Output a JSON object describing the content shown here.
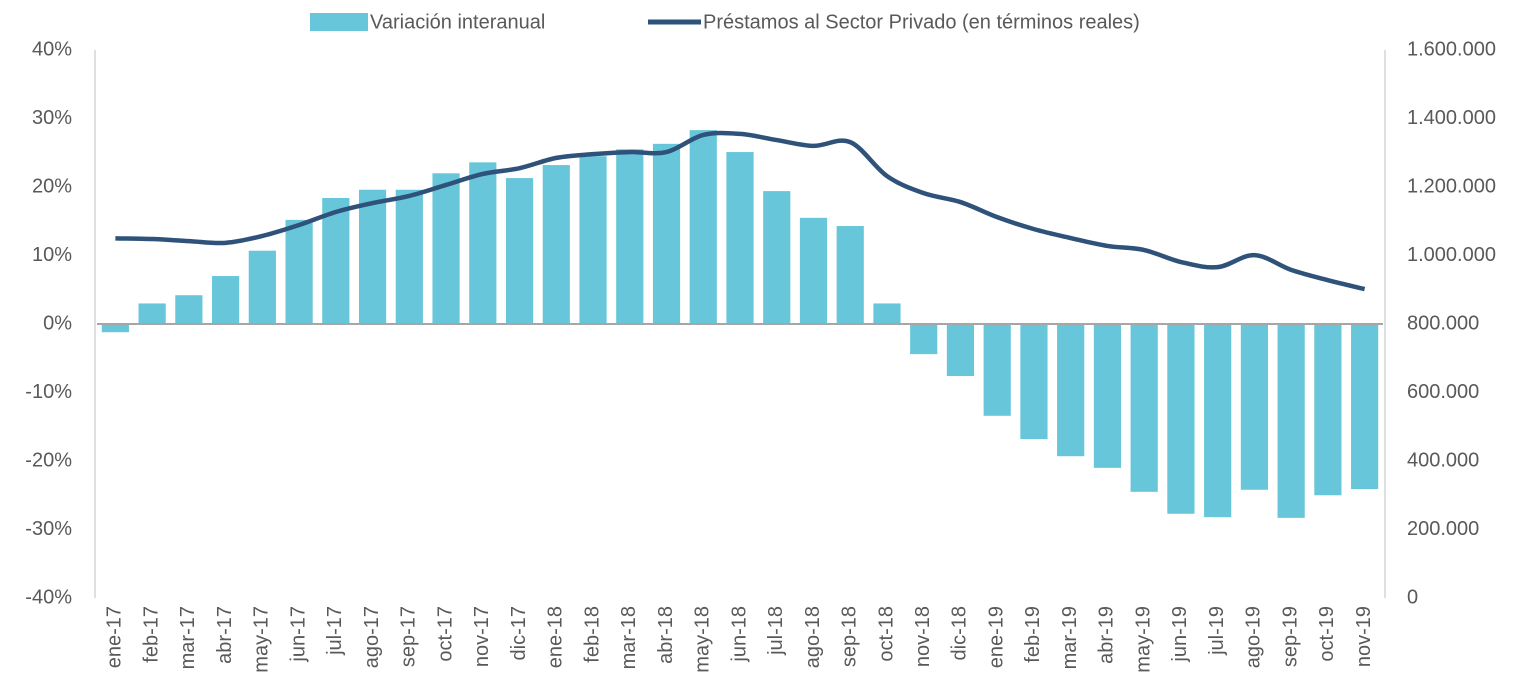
{
  "chart_data": {
    "type": "bar-line",
    "categories": [
      "ene-17",
      "feb-17",
      "mar-17",
      "abr-17",
      "may-17",
      "jun-17",
      "jul-17",
      "ago-17",
      "sep-17",
      "oct-17",
      "nov-17",
      "dic-17",
      "ene-18",
      "feb-18",
      "mar-18",
      "abr-18",
      "may-18",
      "jun-18",
      "jul-18",
      "ago-18",
      "sep-18",
      "oct-18",
      "nov-18",
      "dic-18",
      "ene-19",
      "feb-19",
      "mar-19",
      "abr-19",
      "may-19",
      "jun-19",
      "jul-19",
      "ago-19",
      "sep-19",
      "oct-19",
      "nov-19"
    ],
    "series": [
      {
        "name": "Variación interanual",
        "type": "bar",
        "color": "#67c6da",
        "axis": "y",
        "values": [
          -1.2,
          3.0,
          4.2,
          7.0,
          10.7,
          15.2,
          18.4,
          19.6,
          19.6,
          22.0,
          23.6,
          21.3,
          23.2,
          24.5,
          25.5,
          26.3,
          28.3,
          25.1,
          19.4,
          15.5,
          14.3,
          3.0,
          -4.4,
          -7.6,
          -13.4,
          -16.8,
          -19.3,
          -21.0,
          -24.5,
          -27.7,
          -28.2,
          -24.2,
          -28.3,
          -25.0,
          -24.1
        ]
      },
      {
        "name": "Préstamos al Sector Privado (en términos reales)",
        "type": "line",
        "color": "#2e5279",
        "axis": "y2",
        "values": [
          1050000,
          1048000,
          1042000,
          1037000,
          1057000,
          1089000,
          1127000,
          1153000,
          1174000,
          1206000,
          1238000,
          1255000,
          1285000,
          1296000,
          1302000,
          1302000,
          1352000,
          1355000,
          1337000,
          1320000,
          1331000,
          1232000,
          1182000,
          1156000,
          1112000,
          1077000,
          1051000,
          1028000,
          1016000,
          981000,
          966000,
          1001000,
          958000,
          928000,
          902000
        ]
      }
    ],
    "ylim": [
      -40,
      40
    ],
    "yticks": [
      {
        "value": -40,
        "label": "-40%"
      },
      {
        "value": -30,
        "label": "-30%"
      },
      {
        "value": -20,
        "label": "-20%"
      },
      {
        "value": -10,
        "label": "-10%"
      },
      {
        "value": 0,
        "label": "0%"
      },
      {
        "value": 10,
        "label": "10%"
      },
      {
        "value": 20,
        "label": "20%"
      },
      {
        "value": 30,
        "label": "30%"
      },
      {
        "value": 40,
        "label": "40%"
      }
    ],
    "y2lim": [
      0,
      1600000
    ],
    "y2ticks": [
      0,
      {
        "value": 200000,
        "label": "200.000"
      },
      {
        "value": 400000,
        "label": "400.000"
      },
      {
        "value": 600000,
        "label": "600.000"
      },
      {
        "value": 800000,
        "label": "800.000"
      },
      {
        "value": 1000000,
        "label": "1.000.000"
      },
      {
        "value": 1200000,
        "label": "1.200.000"
      },
      {
        "value": 1400000,
        "label": "1.400.000"
      },
      {
        "value": 1600000,
        "label": "1.600.000"
      }
    ],
    "legend": "top"
  }
}
